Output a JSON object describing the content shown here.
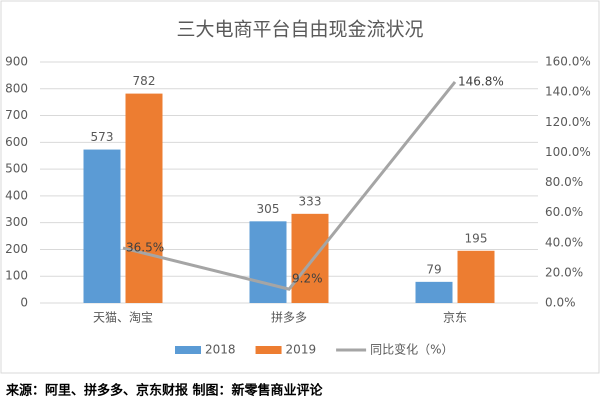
{
  "chart_data": {
    "type": "bar-line",
    "title": "三大电商平台自由现金流状况",
    "categories": [
      "天猫、淘宝",
      "拼多多",
      "京东"
    ],
    "series": [
      {
        "name": "2018",
        "type": "bar",
        "color": "#5b9bd5",
        "values": [
          573,
          305,
          79
        ]
      },
      {
        "name": "2019",
        "type": "bar",
        "color": "#ed7d31",
        "values": [
          782,
          333,
          195
        ]
      },
      {
        "name": "同比变化（%）",
        "type": "line",
        "axis": "y2",
        "color": "#a5a5a5",
        "values": [
          36.5,
          9.2,
          146.8
        ],
        "value_labels": [
          "36.5%",
          "9.2%",
          "146.8%"
        ]
      }
    ],
    "ylim": [
      0,
      900
    ],
    "yticks": [
      0,
      100,
      200,
      300,
      400,
      500,
      600,
      700,
      800,
      900
    ],
    "y2lim": [
      0,
      160
    ],
    "y2ticks": [
      {
        "value": 0,
        "label": "0.0%"
      },
      {
        "value": 20,
        "label": "20.0%"
      },
      {
        "value": 40,
        "label": "40.0%"
      },
      {
        "value": 60,
        "label": "60.0%"
      },
      {
        "value": 80,
        "label": "80.0%"
      },
      {
        "value": 100,
        "label": "100.0%"
      },
      {
        "value": 120,
        "label": "120.0%"
      },
      {
        "value": 140,
        "label": "140.0%"
      },
      {
        "value": 160,
        "label": "160.0%"
      }
    ],
    "grid": true,
    "legend": "bottom",
    "source": "来源：阿里、拼多多、京东财报  制图：新零售商业评论"
  }
}
